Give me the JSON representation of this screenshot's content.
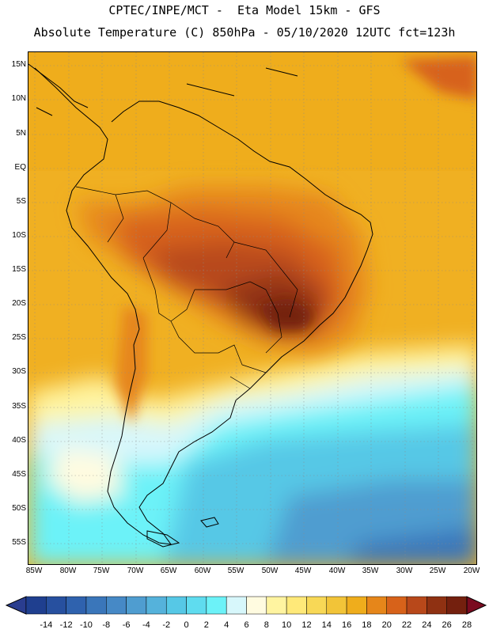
{
  "header": {
    "line1": "CPTEC/INPE/MCT -  Eta Model 15km - GFS",
    "line2": "Absolute Temperature (C) 850hPa - 05/10/2020 12UTC fct=123h"
  },
  "map": {
    "lat_labels": [
      "15N",
      "10N",
      "5N",
      "EQ",
      "5S",
      "10S",
      "15S",
      "20S",
      "25S",
      "30S",
      "35S",
      "40S",
      "45S",
      "50S",
      "55S"
    ],
    "lon_labels": [
      "85W",
      "80W",
      "75W",
      "70W",
      "65W",
      "60W",
      "55W",
      "50W",
      "45W",
      "40W",
      "35W",
      "30W",
      "25W",
      "20W"
    ]
  },
  "colorbar": {
    "labels": [
      "-14",
      "-12",
      "-10",
      "-8",
      "-6",
      "-4",
      "-2",
      "0",
      "2",
      "4",
      "6",
      "8",
      "10",
      "12",
      "14",
      "16",
      "18",
      "20",
      "22",
      "24",
      "26",
      "28"
    ],
    "colors": [
      "#1f3f8f",
      "#27509f",
      "#2f62ae",
      "#3a76ba",
      "#4689c6",
      "#4f9dd0",
      "#55b2db",
      "#56c8e6",
      "#5fdcef",
      "#6cf2f8",
      "#d7f7fb",
      "#fffbe0",
      "#fff4a0",
      "#ffe979",
      "#f8d856",
      "#f2c438",
      "#efad1c",
      "#e6861a",
      "#d7621a",
      "#b8481a",
      "#8f3112",
      "#74200e"
    ],
    "low_color": "#2a3d8f",
    "high_color": "#7a0b20"
  }
}
